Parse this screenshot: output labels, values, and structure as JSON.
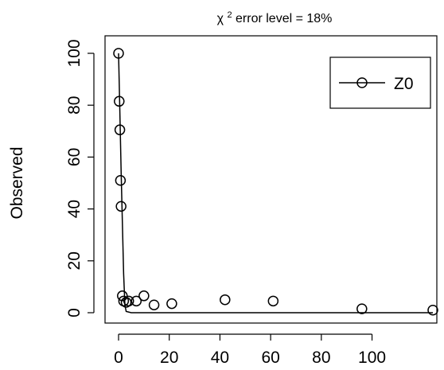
{
  "chart_data": {
    "type": "scatter",
    "title": {
      "prefix": "χ",
      "superscript": "2",
      "suffix": " error level = 18%"
    },
    "xlabel": "",
    "ylabel": "Observed",
    "xlim": [
      0,
      124
    ],
    "ylim": [
      0,
      100
    ],
    "x_ticks": [
      0,
      20,
      40,
      60,
      80,
      100
    ],
    "y_ticks": [
      0,
      20,
      40,
      60,
      80,
      100
    ],
    "grid": false,
    "legend_position": "top-right",
    "legend_entries": [
      "Z0"
    ],
    "series": [
      {
        "name": "Z0",
        "color": "#000000",
        "marker": "open-circle",
        "points": [
          {
            "x": 0,
            "y": 100
          },
          {
            "x": 0.25,
            "y": 81.5
          },
          {
            "x": 0.5,
            "y": 70.5
          },
          {
            "x": 0.75,
            "y": 51
          },
          {
            "x": 1,
            "y": 41
          },
          {
            "x": 1.5,
            "y": 6.5
          },
          {
            "x": 2,
            "y": 4.5
          },
          {
            "x": 3,
            "y": 4
          },
          {
            "x": 4,
            "y": 4.5
          },
          {
            "x": 7,
            "y": 4.5
          },
          {
            "x": 10,
            "y": 6.5
          },
          {
            "x": 14,
            "y": 3
          },
          {
            "x": 21,
            "y": 3.5
          },
          {
            "x": 42,
            "y": 5
          },
          {
            "x": 61,
            "y": 4.5
          },
          {
            "x": 96,
            "y": 1.5
          },
          {
            "x": 124,
            "y": 1
          }
        ],
        "fit_line": [
          {
            "x": 0,
            "y": 100
          },
          {
            "x": 0.5,
            "y": 78
          },
          {
            "x": 1,
            "y": 55
          },
          {
            "x": 1.5,
            "y": 35
          },
          {
            "x": 2,
            "y": 15
          },
          {
            "x": 2.5,
            "y": 3
          },
          {
            "x": 3,
            "y": 0.5
          },
          {
            "x": 5,
            "y": 0
          },
          {
            "x": 124,
            "y": 0
          }
        ]
      }
    ]
  }
}
